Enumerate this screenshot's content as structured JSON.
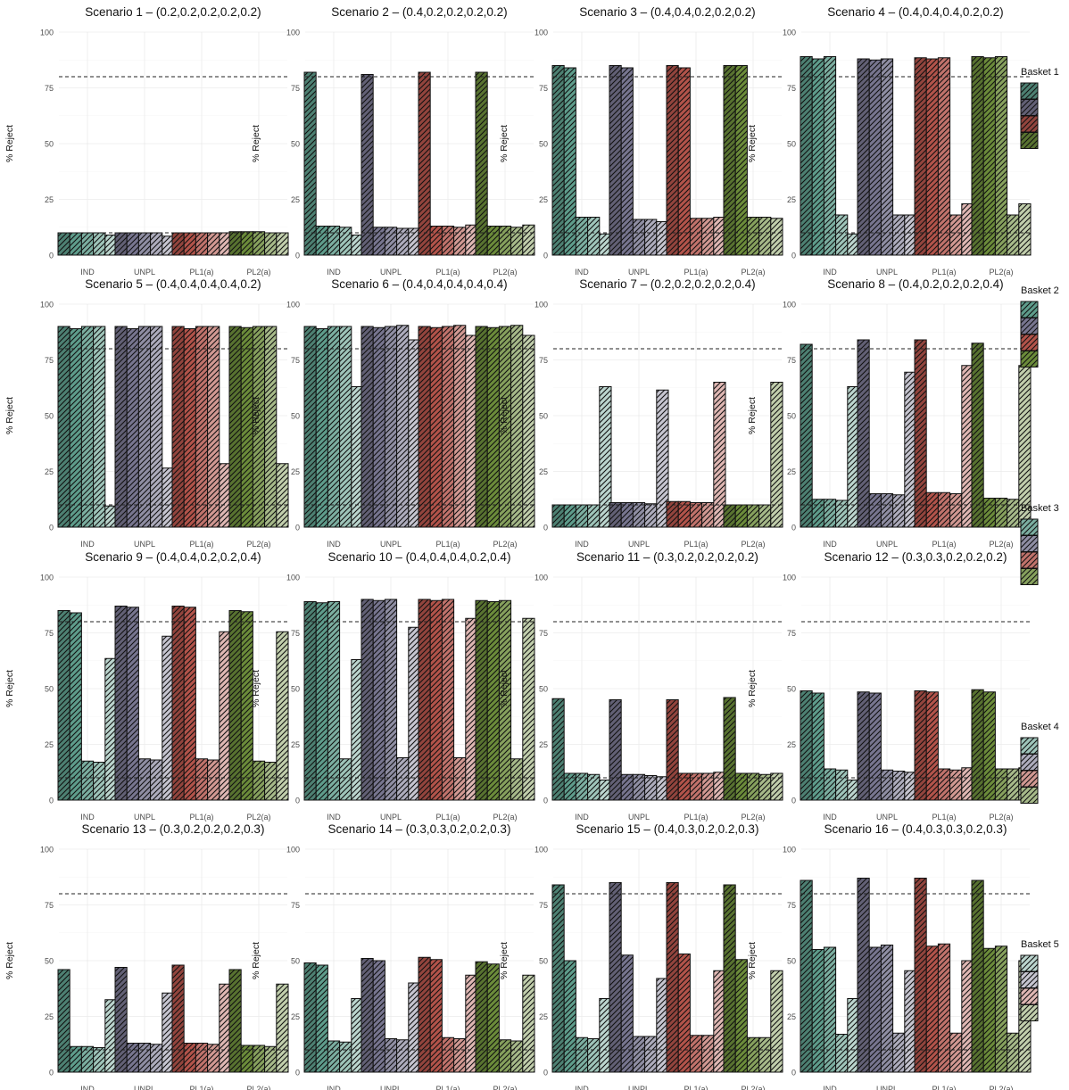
{
  "chart_data": {
    "type": "bar",
    "ylabel": "% Reject",
    "ylim": [
      0,
      100
    ],
    "yticks": [
      0,
      25,
      50,
      75,
      100
    ],
    "categories": [
      "IND",
      "UNPL",
      "PL1(a)",
      "PL2(a)"
    ],
    "reference_lines": [
      10,
      80
    ],
    "grid": true,
    "legend_position": "right",
    "legend_titles": [
      "Basket 1",
      "Basket 2",
      "Basket 3",
      "Basket 4",
      "Basket 5"
    ],
    "method_colors": [
      "#5e9c8b",
      "#77758f",
      "#b2534a",
      "#6b8b3a"
    ],
    "panels": [
      {
        "title": "Scenario 1 – (0.2,0.2,0.2,0.2,0.2)",
        "values": [
          [
            10,
            10,
            10,
            10,
            9
          ],
          [
            10,
            10,
            10,
            10,
            8.5
          ],
          [
            10,
            10,
            10,
            10,
            10
          ],
          [
            10.5,
            10.5,
            10.5,
            10,
            10
          ]
        ]
      },
      {
        "title": "Scenario 2 – (0.4,0.2,0.2,0.2,0.2)",
        "values": [
          [
            82,
            13,
            13,
            12.5,
            9
          ],
          [
            81,
            12.5,
            12.5,
            12,
            12
          ],
          [
            82,
            13,
            13,
            12.5,
            13.5
          ],
          [
            82,
            13,
            13,
            12.5,
            13.5
          ]
        ]
      },
      {
        "title": "Scenario 3 – (0.4,0.4,0.2,0.2,0.2)",
        "values": [
          [
            85,
            84,
            17,
            17,
            9.5
          ],
          [
            85,
            84,
            16,
            16,
            15
          ],
          [
            85,
            84,
            16.5,
            16.5,
            17
          ],
          [
            85,
            85,
            17,
            17,
            16.5
          ]
        ]
      },
      {
        "title": "Scenario 4 – (0.4,0.4,0.4,0.2,0.2)",
        "values": [
          [
            89,
            88,
            89,
            18,
            9.5
          ],
          [
            88,
            87.5,
            88,
            18,
            18
          ],
          [
            88.5,
            88,
            88.5,
            18,
            23
          ],
          [
            89,
            88.5,
            89,
            18,
            23
          ]
        ]
      },
      {
        "title": "Scenario 5 – (0.4,0.4,0.4,0.4,0.2)",
        "values": [
          [
            90,
            89,
            90,
            90,
            9.5
          ],
          [
            90,
            89,
            90,
            90,
            26.5
          ],
          [
            90,
            89,
            90,
            90,
            28.5
          ],
          [
            90,
            89.5,
            90,
            90,
            28.5
          ]
        ]
      },
      {
        "title": "Scenario 6 – (0.4,0.4,0.4,0.4,0.4)",
        "values": [
          [
            90,
            89,
            90,
            90,
            63
          ],
          [
            90,
            89.5,
            90,
            90.5,
            84
          ],
          [
            90,
            89.5,
            90,
            90.5,
            86
          ],
          [
            90,
            89.5,
            90,
            90.5,
            86
          ]
        ]
      },
      {
        "title": "Scenario 7 – (0.2,0.2,0.2,0.2,0.4)",
        "values": [
          [
            10,
            10,
            10,
            10,
            63
          ],
          [
            11,
            11,
            11,
            10.5,
            61.5
          ],
          [
            11.5,
            11.5,
            11,
            11,
            65
          ],
          [
            10,
            10,
            10,
            10,
            65
          ]
        ]
      },
      {
        "title": "Scenario 8 – (0.4,0.2,0.2,0.2,0.4)",
        "values": [
          [
            82,
            12.5,
            12.5,
            12,
            63
          ],
          [
            84,
            15,
            15,
            14.5,
            69.5
          ],
          [
            84,
            15.5,
            15.5,
            15,
            72.5
          ],
          [
            82.5,
            13,
            13,
            12.5,
            72.5
          ]
        ]
      },
      {
        "title": "Scenario 9 – (0.4,0.4,0.2,0.2,0.4)",
        "values": [
          [
            85,
            84,
            17.5,
            17,
            63.5
          ],
          [
            87,
            86.5,
            18.5,
            18,
            73.5
          ],
          [
            87,
            86.5,
            18.5,
            18,
            75.5
          ],
          [
            85,
            84.5,
            17.5,
            17,
            75.5
          ]
        ]
      },
      {
        "title": "Scenario 10 – (0.4,0.4,0.4,0.2,0.4)",
        "values": [
          [
            89,
            88.5,
            89,
            18.5,
            63
          ],
          [
            90,
            89.5,
            90,
            19,
            77.5
          ],
          [
            90,
            89.5,
            90,
            19,
            81.5
          ],
          [
            89.5,
            89,
            89.5,
            18.5,
            81.5
          ]
        ]
      },
      {
        "title": "Scenario 11 – (0.3,0.2,0.2,0.2,0.2)",
        "values": [
          [
            45.5,
            12,
            12,
            11.5,
            9
          ],
          [
            45,
            11.5,
            11.5,
            11,
            10.5
          ],
          [
            45,
            12,
            12,
            12,
            12.5
          ],
          [
            46,
            12,
            12,
            11.5,
            12
          ]
        ]
      },
      {
        "title": "Scenario 12 – (0.3,0.3,0.2,0.2,0.2)",
        "values": [
          [
            49,
            48,
            14,
            13.5,
            9
          ],
          [
            48.5,
            48,
            13.5,
            13,
            12.5
          ],
          [
            49,
            48.5,
            14,
            13.5,
            14.5
          ],
          [
            49.5,
            48.5,
            14,
            14,
            14.5
          ]
        ]
      },
      {
        "title": "Scenario 13 – (0.3,0.2,0.2,0.2,0.3)",
        "values": [
          [
            46,
            11.5,
            11.5,
            11,
            32.5
          ],
          [
            47,
            13,
            13,
            12.5,
            35.5
          ],
          [
            48,
            13,
            13,
            12.5,
            39.5
          ],
          [
            46,
            12,
            12,
            11.5,
            39.5
          ]
        ]
      },
      {
        "title": "Scenario 14 – (0.3,0.3,0.2,0.2,0.3)",
        "values": [
          [
            49,
            48,
            14,
            13.5,
            33
          ],
          [
            51,
            50,
            15,
            14.5,
            40
          ],
          [
            51.5,
            50.5,
            15.5,
            15,
            43.5
          ],
          [
            49.5,
            48.5,
            14.5,
            14,
            43.5
          ]
        ]
      },
      {
        "title": "Scenario 15 – (0.4,0.3,0.2,0.2,0.3)",
        "values": [
          [
            84,
            50,
            15.5,
            15,
            33
          ],
          [
            85,
            52.5,
            16,
            16,
            42
          ],
          [
            85,
            53,
            16.5,
            16.5,
            45.5
          ],
          [
            84,
            50.5,
            15.5,
            15.5,
            45.5
          ]
        ]
      },
      {
        "title": "Scenario 16 – (0.4,0.3,0.3,0.2,0.3)",
        "values": [
          [
            86,
            55,
            56,
            17,
            33
          ],
          [
            87,
            56,
            57,
            17.5,
            45.5
          ],
          [
            87,
            56.5,
            57.5,
            17.5,
            50
          ],
          [
            86,
            55.5,
            56.5,
            17.5,
            50
          ]
        ]
      }
    ]
  }
}
